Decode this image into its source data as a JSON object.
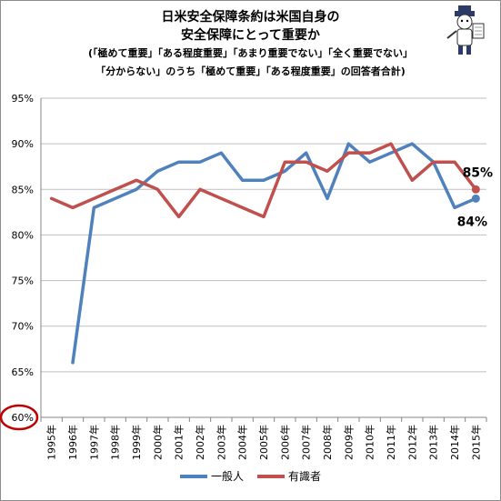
{
  "title": {
    "line1": "日米安全保障条約は米国自身の",
    "line2": "安全保障にとって重要か",
    "line3": "(「極めて重要」「ある程度重要」「あまり重要でない」「全く重要でない」",
    "line4": "「分からない」のうち「極めて重要」「ある程度重要」の回答者合計)"
  },
  "chart_data": {
    "type": "line",
    "title": "日米安全保障条約は米国自身の安全保障にとって重要か",
    "subtitle": "(「極めて重要」「ある程度重要」「あまり重要でない」「全く重要でない」「分からない」のうち「極めて重要」「ある程度重要」の回答者合計)",
    "categories": [
      "1995年",
      "1996年",
      "1997年",
      "1998年",
      "1999年",
      "2000年",
      "2001年",
      "2002年",
      "2003年",
      "2004年",
      "2005年",
      "2006年",
      "2007年",
      "2008年",
      "2009年",
      "2010年",
      "2011年",
      "2012年",
      "2013年",
      "2014年",
      "2015年"
    ],
    "y_ticks": [
      "60%",
      "65%",
      "70%",
      "75%",
      "80%",
      "85%",
      "90%",
      "95%"
    ],
    "ylim": [
      60,
      95
    ],
    "grid": true,
    "legend_position": "bottom",
    "series": [
      {
        "name": "一般人",
        "color": "#4f81bd",
        "values": [
          null,
          66,
          83,
          84,
          85,
          87,
          88,
          88,
          89,
          86,
          86,
          87,
          89,
          84,
          90,
          88,
          89,
          90,
          88,
          83,
          84
        ],
        "end_label": "84%"
      },
      {
        "name": "有識者",
        "color": "#c0504d",
        "values": [
          84,
          83,
          84,
          85,
          86,
          85,
          82,
          85,
          84,
          83,
          82,
          88,
          88,
          87,
          89,
          89,
          90,
          86,
          88,
          88,
          85
        ],
        "end_label": "85%"
      }
    ],
    "highlight_tick": "60%",
    "highlight_color": "#c00000"
  }
}
